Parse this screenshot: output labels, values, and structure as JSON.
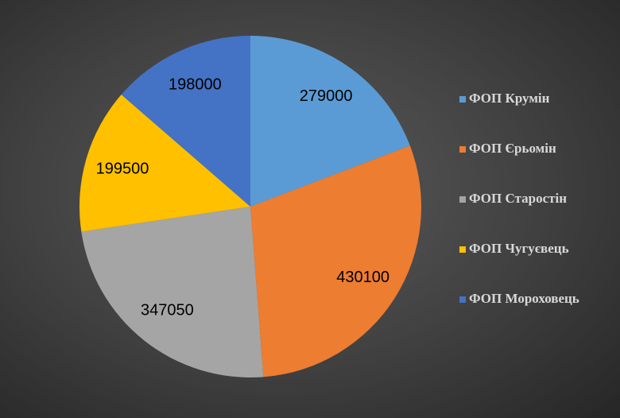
{
  "chart_data": {
    "type": "pie",
    "categories": [
      "ФОП Крумін",
      "ФОП Єрьомін",
      "ФОП Старостін",
      "ФОП Чугуєвець",
      "ФОП Мороховець"
    ],
    "values": [
      279000,
      430100,
      347050,
      199500,
      198000
    ],
    "colors": [
      "#5b9bd5",
      "#ed7d31",
      "#a5a5a5",
      "#ffc000",
      "#4472c4"
    ],
    "legend": "right"
  }
}
